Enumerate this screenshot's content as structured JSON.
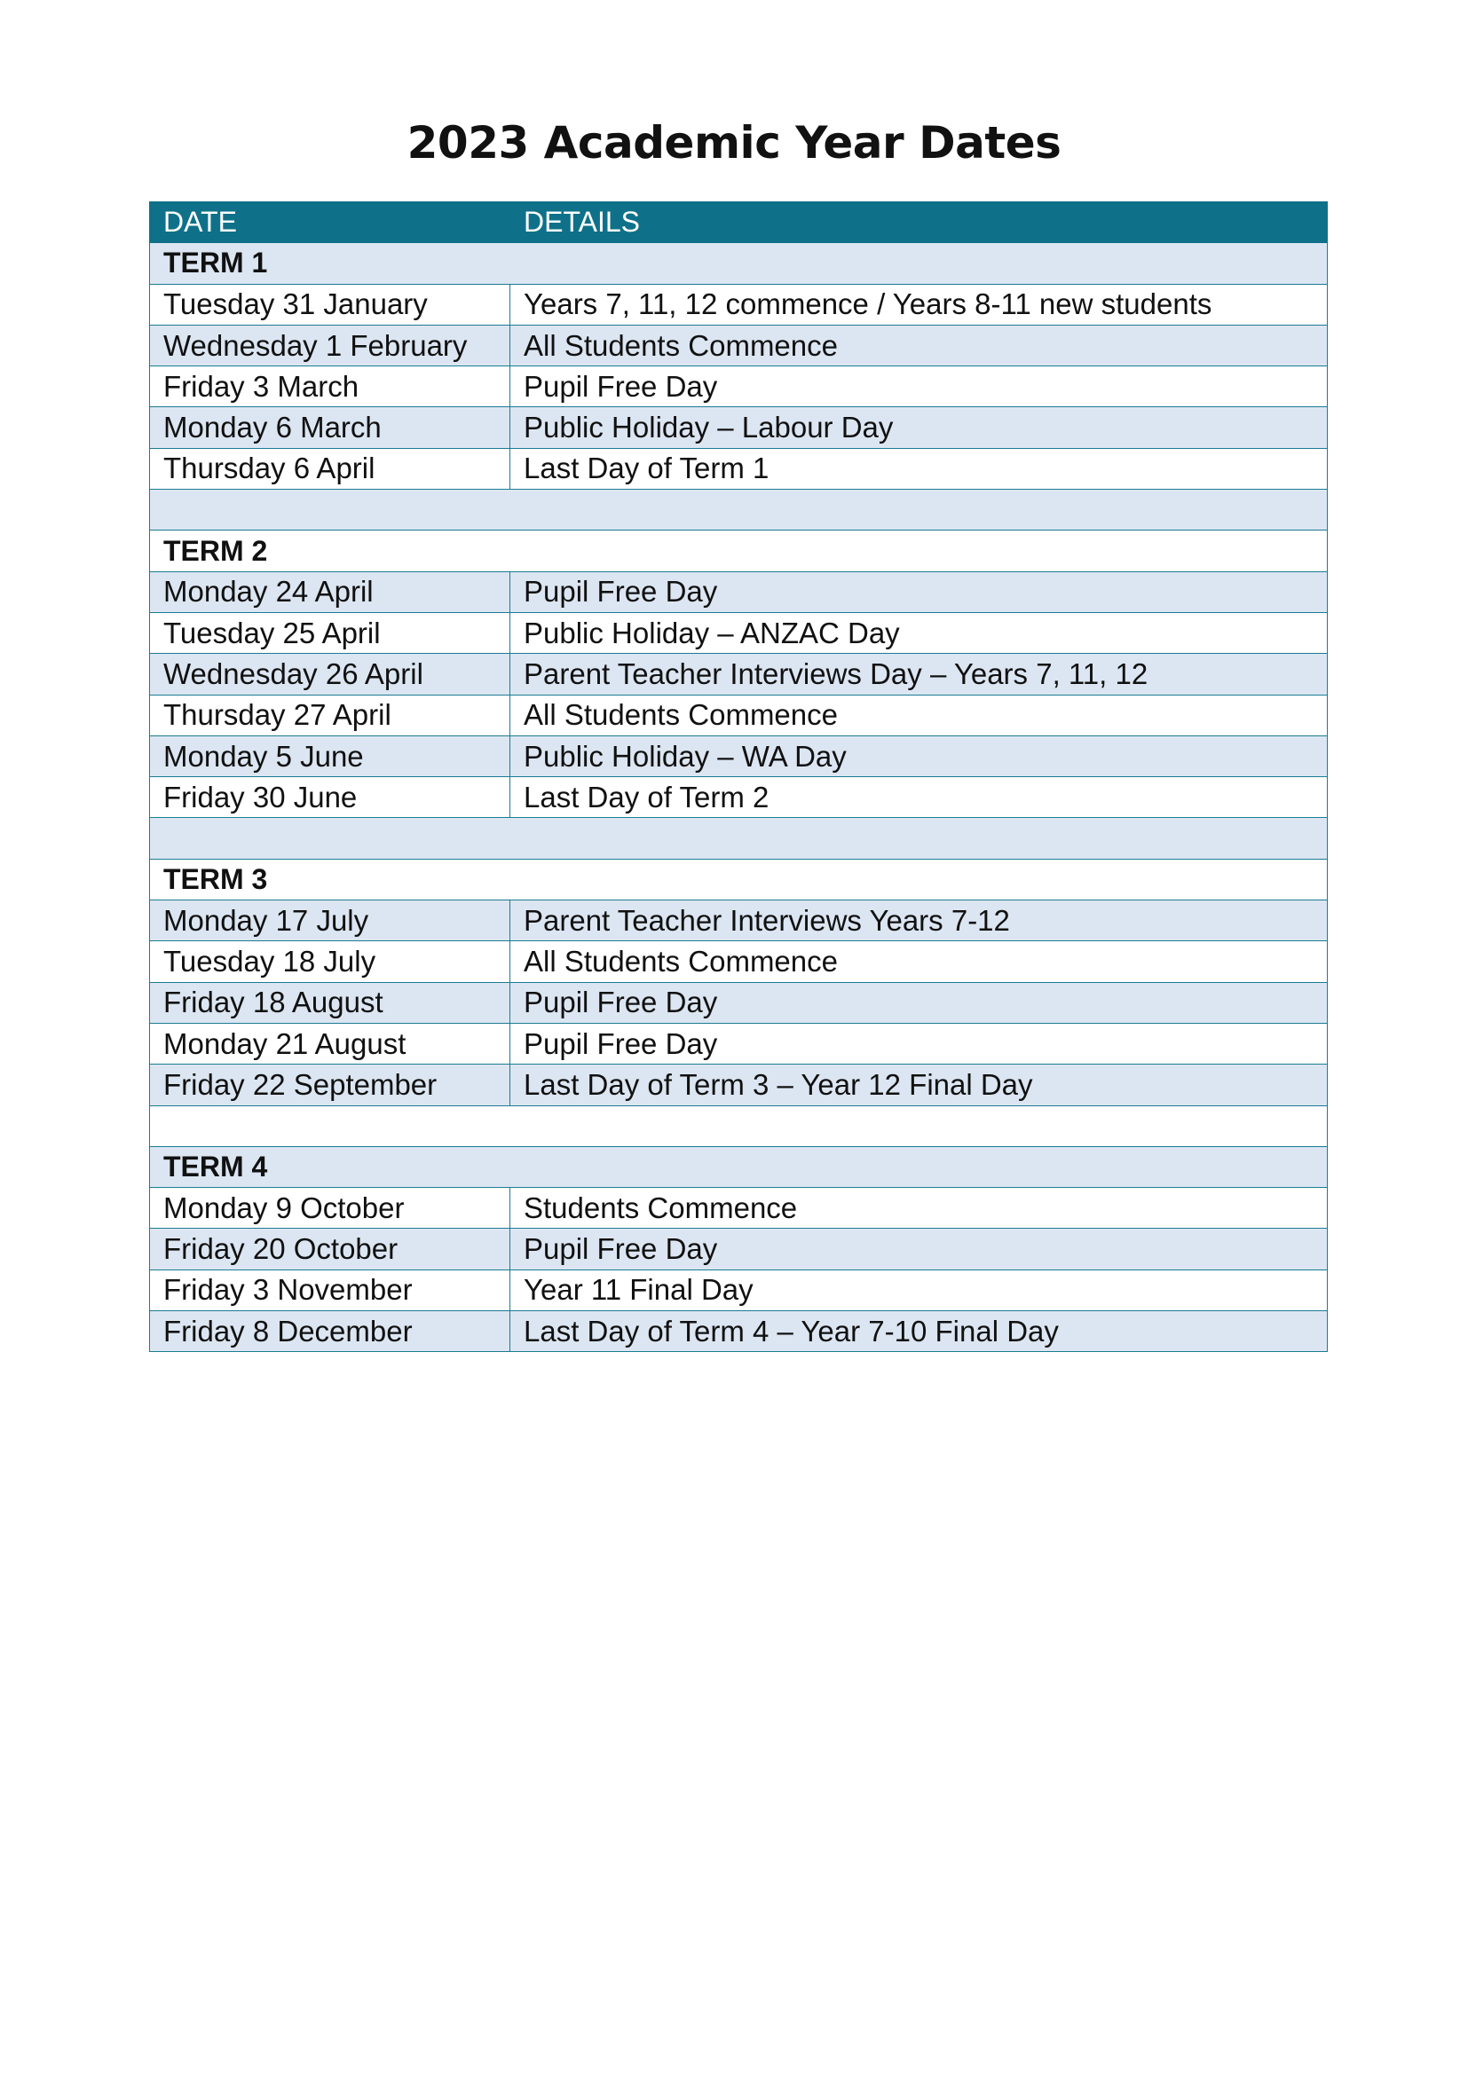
{
  "title": "2023 Academic Year Dates",
  "colors": {
    "header": "#0f7189",
    "row_alt": "#dce6f2",
    "border": "#1a7b92"
  },
  "table": {
    "headers": [
      "DATE",
      "DETAILS"
    ],
    "terms": [
      {
        "name": "TERM 1",
        "rows": [
          [
            "Tuesday 31 January",
            "Years 7, 11, 12 commence / Years 8-11 new students"
          ],
          [
            "Wednesday 1 February",
            "All Students Commence"
          ],
          [
            "Friday 3 March",
            "Pupil Free Day"
          ],
          [
            "Monday 6 March",
            "Public Holiday – Labour Day"
          ],
          [
            "Thursday 6 April",
            "Last Day of Term 1"
          ]
        ]
      },
      {
        "name": "TERM 2",
        "rows": [
          [
            "Monday 24 April",
            "Pupil Free Day"
          ],
          [
            "Tuesday 25 April",
            "Public Holiday – ANZAC Day"
          ],
          [
            "Wednesday 26 April",
            "Parent Teacher Interviews Day – Years 7, 11, 12"
          ],
          [
            "Thursday 27 April",
            "All Students Commence"
          ],
          [
            "Monday 5 June",
            "Public Holiday – WA Day"
          ],
          [
            "Friday 30 June",
            "Last Day of Term 2"
          ]
        ]
      },
      {
        "name": "TERM 3",
        "rows": [
          [
            "Monday 17 July",
            "Parent Teacher Interviews Years 7-12"
          ],
          [
            "Tuesday 18 July",
            "All Students Commence"
          ],
          [
            "Friday 18 August",
            "Pupil Free Day"
          ],
          [
            "Monday 21 August",
            "Pupil Free Day"
          ],
          [
            "Friday 22 September",
            "Last Day of Term 3 – Year 12 Final Day"
          ]
        ]
      },
      {
        "name": "TERM 4",
        "rows": [
          [
            "Monday 9 October",
            "Students Commence"
          ],
          [
            "Friday 20 October",
            "Pupil Free Day"
          ],
          [
            "Friday 3 November",
            "Year 11 Final Day"
          ],
          [
            "Friday 8 December",
            "Last Day of Term 4 – Year 7-10 Final Day"
          ]
        ]
      }
    ]
  }
}
